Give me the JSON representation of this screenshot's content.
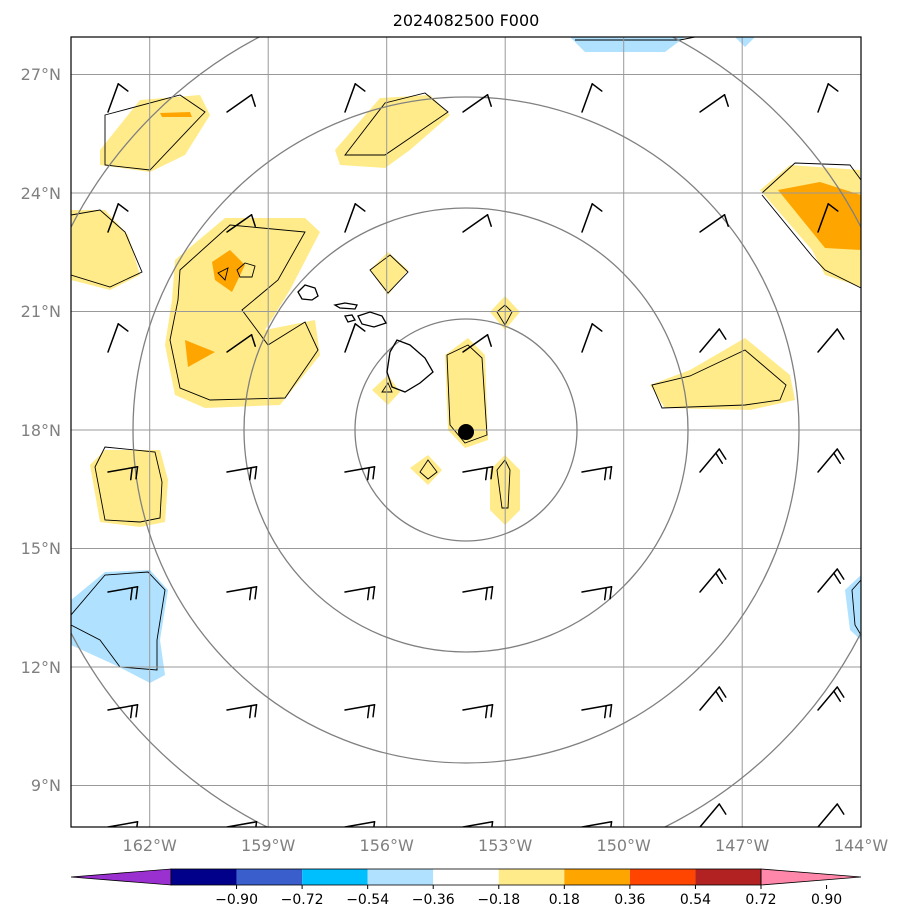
{
  "title": "2024082500 F000",
  "lat_labels": [
    "27°N",
    "24°N",
    "21°N",
    "18°N",
    "15°N",
    "12°N",
    "9°N"
  ],
  "lon_labels": [
    "162°W",
    "159°W",
    "156°W",
    "153°W",
    "150°W",
    "147°W",
    "144°W"
  ],
  "map_extent": {
    "lon_min": -164,
    "lon_max": -144,
    "lat_min": 8,
    "lat_max": 28
  },
  "grid_lats": [
    27,
    24,
    21,
    18,
    15,
    12,
    9
  ],
  "grid_lons": [
    -162,
    -159,
    -156,
    -153,
    -150,
    -147,
    -144
  ],
  "storm_center": {
    "lon": -154.0,
    "lat": 18.0
  },
  "colorbar": {
    "labels": [
      "−0.90",
      "−0.72",
      "−0.54",
      "−0.36",
      "−0.18",
      "0.18",
      "0.36",
      "0.54",
      "0.72",
      "0.90"
    ],
    "colors": [
      "#9b30d0",
      "#00008b",
      "#3a5fcd",
      "#00bfff",
      "#b0e2ff",
      "#ffffff",
      "#ffeb8a",
      "#ffa500",
      "#ff4500",
      "#b22222",
      "#ff88aa"
    ]
  },
  "colors": {
    "grid": "#999999",
    "range_ring": "#808080",
    "positive_light": "#ffeb8a",
    "positive_dark": "#ffa500",
    "negative_light": "#b0e2ff"
  },
  "icons": [
    "wind-barb-icon",
    "storm-center-icon"
  ]
}
